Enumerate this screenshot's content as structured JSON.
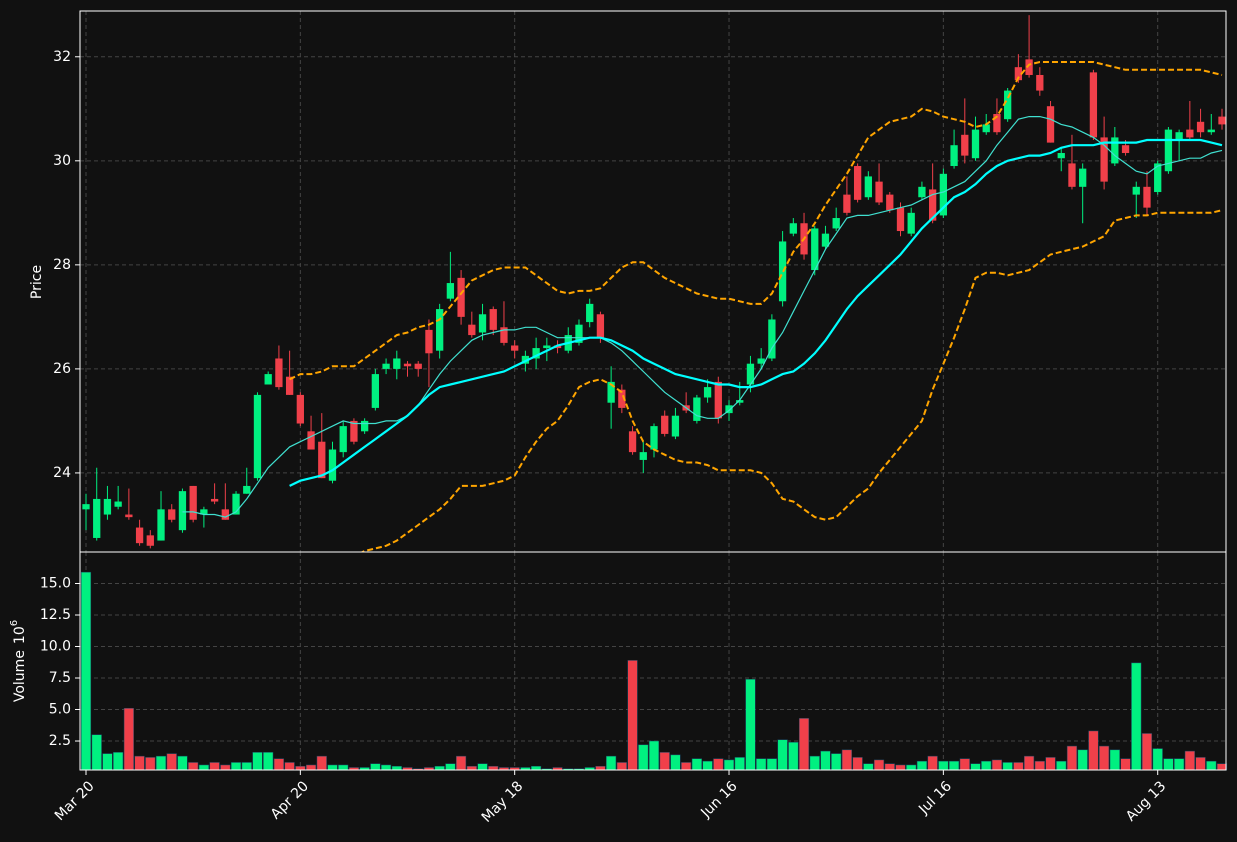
{
  "chart_data": {
    "type": "candlestick",
    "categories": [
      "Mar 20",
      null,
      null,
      null,
      null,
      null,
      null,
      null,
      null,
      null,
      null,
      null,
      null,
      null,
      null,
      null,
      null,
      null,
      null,
      null,
      "Apr 20",
      null,
      null,
      null,
      null,
      null,
      null,
      null,
      null,
      null,
      null,
      null,
      null,
      null,
      null,
      null,
      null,
      null,
      null,
      null,
      "May 18",
      null,
      null,
      null,
      null,
      null,
      null,
      null,
      null,
      null,
      null,
      null,
      null,
      null,
      null,
      null,
      null,
      null,
      null,
      null,
      "Jun 16",
      null,
      null,
      null,
      null,
      null,
      null,
      null,
      null,
      null,
      null,
      null,
      null,
      null,
      null,
      null,
      null,
      null,
      null,
      null,
      "Jul 16",
      null,
      null,
      null,
      null,
      null,
      null,
      null,
      null,
      null,
      null,
      null,
      null,
      null,
      null,
      null,
      null,
      null,
      null,
      null,
      "Aug 13",
      null,
      null,
      null,
      null,
      null,
      null
    ],
    "open": [
      23.3,
      22.75,
      23.2,
      23.35,
      23.2,
      22.95,
      22.8,
      22.7,
      23.3,
      22.9,
      23.75,
      23.2,
      23.5,
      23.3,
      23.2,
      23.6,
      23.9,
      25.7,
      26.2,
      25.85,
      25.5,
      24.8,
      24.6,
      23.85,
      24.4,
      25.0,
      24.8,
      25.25,
      26.0,
      26.0,
      26.1,
      26.1,
      26.75,
      26.35,
      27.35,
      27.75,
      26.85,
      26.7,
      27.15,
      26.8,
      26.45,
      26.1,
      26.2,
      26.4,
      26.45,
      26.35,
      26.5,
      26.9,
      27.05,
      25.35,
      25.6,
      24.8,
      24.25,
      24.45,
      25.1,
      24.7,
      25.3,
      25.0,
      25.45,
      25.75,
      25.15,
      25.35,
      25.7,
      26.1,
      26.2,
      27.3,
      28.6,
      28.8,
      27.9,
      28.35,
      28.7,
      29.35,
      29.9,
      29.3,
      29.6,
      29.35,
      29.1,
      28.6,
      29.3,
      29.45,
      28.95,
      29.9,
      30.5,
      30.05,
      30.55,
      30.9,
      30.8,
      31.8,
      31.95,
      31.65,
      31.05,
      30.05,
      29.95,
      29.5,
      31.7,
      30.45,
      29.95,
      30.3,
      29.35,
      29.5,
      29.4,
      29.8,
      30.4,
      30.6,
      30.75,
      30.55,
      30.85
    ],
    "high": [
      23.6,
      24.1,
      23.75,
      23.75,
      23.7,
      23.1,
      22.9,
      23.65,
      23.4,
      23.7,
      23.75,
      23.35,
      23.8,
      23.8,
      23.65,
      24.1,
      25.55,
      25.95,
      26.45,
      26.35,
      25.55,
      25.1,
      25.15,
      24.6,
      25.0,
      25.05,
      25.05,
      26.0,
      26.2,
      26.35,
      26.15,
      26.15,
      26.95,
      27.25,
      28.25,
      27.9,
      27.1,
      27.25,
      27.2,
      27.3,
      26.55,
      26.35,
      26.6,
      26.6,
      26.55,
      26.8,
      26.95,
      27.35,
      27.1,
      26.05,
      25.7,
      24.9,
      24.6,
      24.95,
      25.2,
      25.25,
      25.55,
      25.5,
      25.8,
      25.85,
      25.4,
      25.75,
      26.25,
      26.4,
      27.05,
      28.65,
      28.9,
      29.0,
      28.75,
      28.75,
      29.1,
      29.7,
      29.95,
      29.8,
      29.95,
      29.4,
      29.2,
      29.1,
      29.6,
      29.95,
      29.85,
      30.6,
      31.2,
      30.85,
      30.9,
      31.2,
      31.4,
      32.05,
      32.8,
      31.8,
      31.15,
      30.25,
      30.5,
      29.95,
      31.75,
      30.85,
      30.65,
      30.4,
      29.6,
      29.8,
      30.0,
      30.65,
      30.6,
      31.15,
      31.0,
      30.9,
      31.0
    ],
    "low": [
      22.9,
      22.7,
      23.1,
      23.3,
      23.1,
      22.6,
      22.55,
      22.7,
      23.05,
      22.85,
      23.05,
      22.95,
      23.4,
      23.1,
      23.2,
      23.6,
      23.85,
      25.7,
      25.6,
      25.5,
      24.9,
      24.45,
      23.9,
      23.8,
      24.3,
      24.55,
      24.75,
      25.2,
      25.9,
      25.8,
      25.85,
      25.85,
      25.65,
      26.2,
      27.3,
      26.85,
      26.6,
      26.55,
      26.65,
      26.45,
      26.2,
      25.95,
      26.0,
      26.15,
      26.3,
      26.3,
      26.45,
      26.8,
      26.5,
      24.85,
      25.15,
      24.35,
      24.0,
      24.3,
      24.7,
      24.65,
      25.15,
      24.95,
      25.35,
      24.95,
      25.0,
      25.3,
      25.55,
      26.0,
      26.15,
      27.2,
      28.55,
      28.1,
      27.8,
      28.3,
      28.65,
      28.95,
      29.2,
      29.25,
      29.15,
      29.0,
      28.55,
      28.55,
      29.25,
      28.8,
      28.9,
      29.85,
      29.95,
      30.0,
      30.5,
      30.5,
      30.75,
      31.5,
      31.6,
      31.25,
      30.35,
      29.8,
      29.45,
      28.8,
      30.4,
      29.45,
      29.9,
      30.1,
      28.9,
      28.95,
      29.35,
      29.75,
      30.0,
      30.4,
      30.45,
      30.5,
      30.6
    ],
    "close": [
      23.4,
      23.5,
      23.5,
      23.45,
      23.15,
      22.65,
      22.6,
      23.3,
      23.1,
      23.65,
      23.1,
      23.3,
      23.45,
      23.1,
      23.6,
      23.75,
      25.5,
      25.9,
      25.65,
      25.5,
      24.95,
      24.45,
      23.9,
      24.45,
      24.9,
      24.6,
      25.0,
      25.9,
      26.1,
      26.2,
      26.05,
      26.0,
      26.3,
      27.15,
      27.65,
      27.0,
      26.65,
      27.05,
      26.75,
      26.5,
      26.35,
      26.25,
      26.4,
      26.45,
      26.4,
      26.65,
      26.85,
      27.25,
      26.6,
      25.75,
      25.25,
      24.4,
      24.4,
      24.9,
      24.75,
      25.1,
      25.2,
      25.45,
      25.65,
      25.05,
      25.3,
      25.4,
      26.1,
      26.2,
      26.95,
      28.45,
      28.8,
      28.2,
      28.7,
      28.6,
      28.9,
      29.0,
      29.25,
      29.7,
      29.2,
      29.05,
      28.65,
      29.0,
      29.5,
      28.85,
      29.75,
      30.3,
      30.1,
      30.6,
      30.7,
      30.55,
      31.35,
      31.55,
      31.65,
      31.35,
      30.35,
      30.15,
      29.5,
      29.85,
      30.45,
      29.6,
      30.45,
      30.15,
      29.5,
      29.1,
      29.95,
      30.6,
      30.55,
      30.45,
      30.55,
      30.6,
      30.7
    ],
    "volume": [
      15.9,
      3.0,
      1.5,
      1.6,
      5.1,
      1.3,
      1.2,
      1.3,
      1.5,
      1.3,
      0.8,
      0.6,
      0.8,
      0.6,
      0.8,
      0.8,
      1.6,
      1.6,
      1.1,
      0.8,
      0.5,
      0.6,
      1.3,
      0.6,
      0.6,
      0.4,
      0.4,
      0.7,
      0.6,
      0.5,
      0.4,
      0.3,
      0.4,
      0.5,
      0.7,
      1.3,
      0.5,
      0.7,
      0.5,
      0.4,
      0.4,
      0.4,
      0.5,
      0.3,
      0.4,
      0.3,
      0.3,
      0.4,
      0.5,
      1.3,
      0.8,
      8.9,
      2.2,
      2.5,
      1.6,
      1.4,
      0.8,
      1.1,
      0.9,
      1.1,
      1.0,
      1.2,
      7.4,
      1.1,
      1.1,
      2.6,
      2.4,
      4.3,
      1.3,
      1.7,
      1.5,
      1.8,
      1.2,
      0.7,
      1.0,
      0.7,
      0.6,
      0.6,
      0.9,
      1.3,
      0.9,
      0.9,
      1.1,
      0.7,
      0.9,
      1.0,
      0.8,
      0.8,
      1.3,
      0.9,
      1.2,
      0.9,
      2.1,
      1.8,
      3.3,
      2.1,
      1.8,
      1.1,
      8.7,
      3.1,
      1.9,
      1.1,
      1.1,
      1.7,
      1.2,
      0.9,
      0.7
    ],
    "up_color": "#00f080",
    "down_color": "#f0404a",
    "overlays": [
      {
        "color": "#40e0d0",
        "linewidth": 1.2,
        "linestyle": "solid",
        "values": [
          null,
          null,
          null,
          null,
          null,
          null,
          null,
          null,
          null,
          23.25,
          23.25,
          23.2,
          23.2,
          23.15,
          23.25,
          23.5,
          23.8,
          24.1,
          24.3,
          24.5,
          24.6,
          24.7,
          24.8,
          24.9,
          25.0,
          24.95,
          24.95,
          24.95,
          25.0,
          25.0,
          25.1,
          25.3,
          25.6,
          25.9,
          26.15,
          26.35,
          26.55,
          26.65,
          26.7,
          26.75,
          26.75,
          26.8,
          26.8,
          26.7,
          26.6,
          26.6,
          26.6,
          26.6,
          26.6,
          26.5,
          26.35,
          26.15,
          25.95,
          25.75,
          25.55,
          25.4,
          25.25,
          25.1,
          25.05,
          25.05,
          25.2,
          25.4,
          25.7,
          26.0,
          26.4,
          26.7,
          27.1,
          27.5,
          27.9,
          28.3,
          28.6,
          28.9,
          28.95,
          28.95,
          29.0,
          29.05,
          29.1,
          29.15,
          29.25,
          29.35,
          29.4,
          29.5,
          29.6,
          29.8,
          30.0,
          30.3,
          30.55,
          30.8,
          30.85,
          30.85,
          30.8,
          30.7,
          30.65,
          30.55,
          30.45,
          30.3,
          30.1,
          29.95,
          29.8,
          29.75,
          29.9,
          29.95,
          30.0,
          30.05,
          30.05,
          30.15,
          30.2
        ]
      },
      {
        "color": "#00ffff",
        "linewidth": 2.2,
        "linestyle": "solid",
        "values": [
          null,
          null,
          null,
          null,
          null,
          null,
          null,
          null,
          null,
          null,
          null,
          null,
          null,
          null,
          null,
          null,
          null,
          null,
          null,
          23.75,
          23.85,
          23.9,
          23.95,
          24.05,
          24.2,
          24.35,
          24.5,
          24.65,
          24.8,
          24.95,
          25.1,
          25.3,
          25.5,
          25.65,
          25.7,
          25.75,
          25.8,
          25.85,
          25.9,
          25.95,
          26.05,
          26.15,
          26.25,
          26.35,
          26.45,
          26.5,
          26.55,
          26.6,
          26.6,
          26.55,
          26.45,
          26.35,
          26.2,
          26.1,
          26.0,
          25.9,
          25.85,
          25.8,
          25.75,
          25.7,
          25.7,
          25.65,
          25.65,
          25.7,
          25.8,
          25.9,
          25.95,
          26.1,
          26.3,
          26.55,
          26.85,
          27.15,
          27.4,
          27.6,
          27.8,
          28.0,
          28.2,
          28.45,
          28.7,
          28.9,
          29.1,
          29.3,
          29.4,
          29.55,
          29.75,
          29.9,
          30.0,
          30.05,
          30.1,
          30.1,
          30.15,
          30.25,
          30.3,
          30.3,
          30.3,
          30.35,
          30.35,
          30.35,
          30.35,
          30.4,
          30.4,
          30.4,
          30.4,
          30.4,
          30.4,
          30.35,
          30.3
        ]
      },
      {
        "color": "#ffa500",
        "linewidth": 2,
        "linestyle": "dashed",
        "values": [
          null,
          null,
          null,
          null,
          null,
          null,
          null,
          null,
          null,
          null,
          null,
          null,
          null,
          null,
          null,
          null,
          null,
          null,
          null,
          25.8,
          25.9,
          25.9,
          25.95,
          26.05,
          26.05,
          26.05,
          26.2,
          26.35,
          26.5,
          26.65,
          26.7,
          26.8,
          26.85,
          26.95,
          27.2,
          27.45,
          27.7,
          27.8,
          27.9,
          27.95,
          27.95,
          27.95,
          27.8,
          27.65,
          27.5,
          27.45,
          27.5,
          27.5,
          27.55,
          27.75,
          27.95,
          28.05,
          28.05,
          27.9,
          27.75,
          27.65,
          27.55,
          27.45,
          27.4,
          27.35,
          27.35,
          27.3,
          27.25,
          27.25,
          27.45,
          27.85,
          28.25,
          28.5,
          28.8,
          29.15,
          29.45,
          29.75,
          30.1,
          30.45,
          30.6,
          30.75,
          30.8,
          30.85,
          31.0,
          30.95,
          30.85,
          30.8,
          30.75,
          30.65,
          30.7,
          30.85,
          31.2,
          31.6,
          31.85,
          31.9,
          31.9,
          31.9,
          31.9,
          31.9,
          31.9,
          31.85,
          31.8,
          31.75,
          31.75,
          31.75,
          31.75,
          31.75,
          31.75,
          31.75,
          31.75,
          31.7,
          31.65
        ]
      },
      {
        "color": "#ffa500",
        "linewidth": 2,
        "linestyle": "dashed",
        "values": [
          null,
          null,
          null,
          null,
          null,
          null,
          null,
          null,
          null,
          null,
          null,
          null,
          null,
          null,
          null,
          null,
          null,
          null,
          null,
          21.7,
          21.8,
          21.85,
          21.9,
          22.05,
          22.2,
          22.4,
          22.5,
          22.55,
          22.6,
          22.7,
          22.85,
          23.0,
          23.15,
          23.3,
          23.5,
          23.75,
          23.75,
          23.75,
          23.8,
          23.85,
          23.95,
          24.3,
          24.6,
          24.85,
          25.0,
          25.3,
          25.65,
          25.75,
          25.8,
          25.7,
          25.55,
          25.0,
          24.6,
          24.45,
          24.35,
          24.25,
          24.2,
          24.2,
          24.15,
          24.05,
          24.05,
          24.05,
          24.05,
          24.0,
          23.8,
          23.5,
          23.45,
          23.3,
          23.15,
          23.1,
          23.15,
          23.35,
          23.55,
          23.7,
          24.0,
          24.25,
          24.5,
          24.75,
          25.0,
          25.6,
          26.1,
          26.6,
          27.15,
          27.75,
          27.85,
          27.85,
          27.8,
          27.85,
          27.9,
          28.05,
          28.2,
          28.25,
          28.3,
          28.35,
          28.45,
          28.55,
          28.85,
          28.9,
          28.95,
          28.95,
          29.0,
          29.0,
          29.0,
          29.0,
          29.0,
          29.0,
          29.05
        ]
      }
    ],
    "ylabel": "Price",
    "ylim": [
      22.48,
      32.88
    ],
    "yticks": [
      24,
      26,
      28,
      30,
      32
    ],
    "volume_ylabel": "Volume",
    "volume_scale_base": "10",
    "volume_scale_exponent": "6",
    "volume_ylim": [
      0.2,
      17.5
    ],
    "volume_yticks": [
      2.5,
      {
        "value": 5,
        "label": "5.0"
      },
      7.5,
      {
        "value": 10,
        "label": "10.0"
      },
      12.5,
      {
        "value": 15,
        "label": "15.0"
      }
    ],
    "grid": true
  }
}
